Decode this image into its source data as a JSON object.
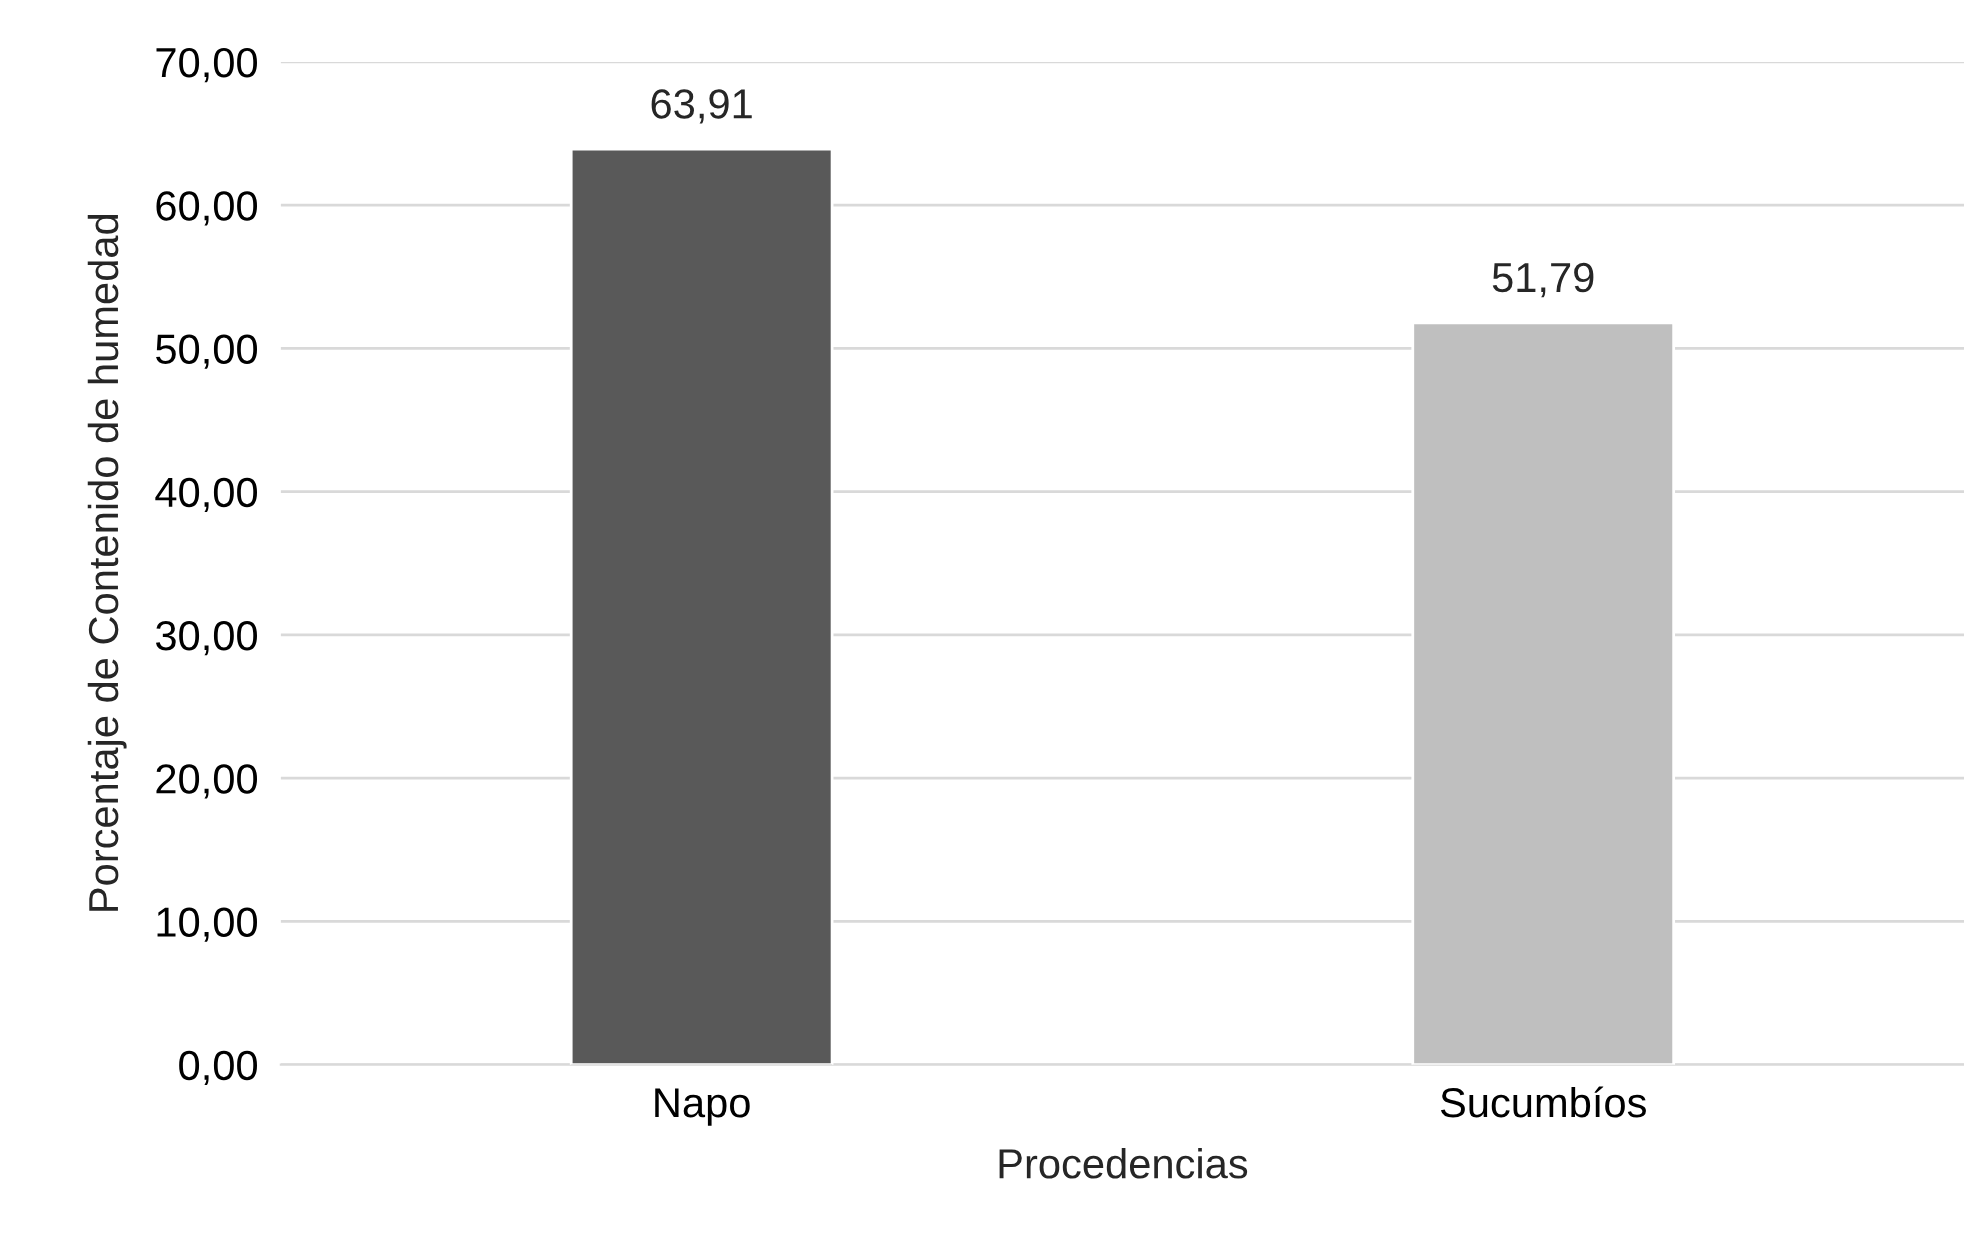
{
  "chart_data": {
    "type": "bar",
    "xlabel": "Procedencias",
    "ylabel": "Porcentaje de Contenido de humedad",
    "categories": [
      "Napo",
      "Sucumbíos"
    ],
    "values": [
      63.91,
      51.79
    ],
    "colors": [
      "#595959",
      "#bfbfbf"
    ],
    "value_labels": [
      "63,91",
      "51,79"
    ],
    "ylim": [
      0,
      70
    ],
    "yticks": [
      {
        "value": 0,
        "label": "0,00"
      },
      {
        "value": 10,
        "label": "10,00"
      },
      {
        "value": 20,
        "label": "20,00"
      },
      {
        "value": 30,
        "label": "30,00"
      },
      {
        "value": 40,
        "label": "40,00"
      },
      {
        "value": 50,
        "label": "50,00"
      },
      {
        "value": 60,
        "label": "60,00"
      },
      {
        "value": 70,
        "label": "70,00"
      }
    ],
    "grid": "y",
    "legend": false
  }
}
